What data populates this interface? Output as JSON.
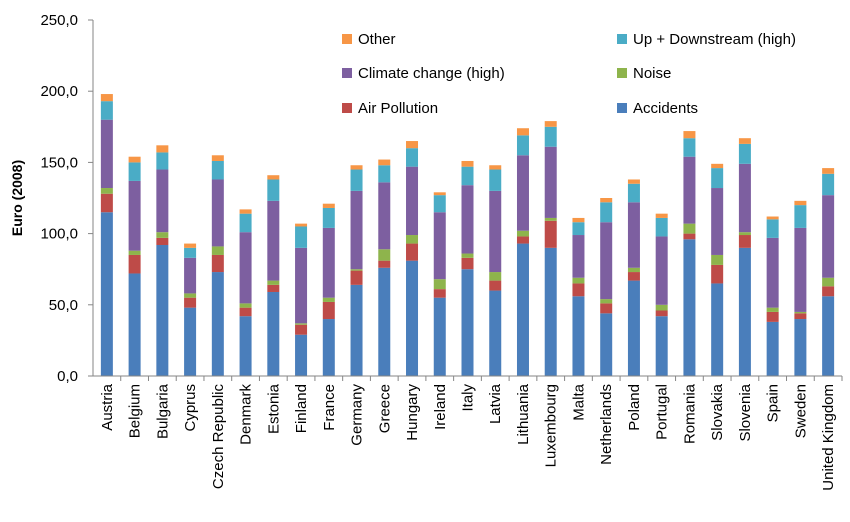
{
  "chart_data": {
    "type": "bar",
    "stacked": true,
    "title": "",
    "xlabel": "",
    "ylabel": "Euro (2008)",
    "ylim": [
      0,
      250
    ],
    "yticks": [
      "0,0",
      "50,0",
      "100,0",
      "150,0",
      "200,0",
      "250,0"
    ],
    "grid": false,
    "legend_position": "top-right",
    "categories": [
      "Austria",
      "Belgium",
      "Bulgaria",
      "Cyprus",
      "Czech Republic",
      "Denmark",
      "Estonia",
      "Finland",
      "France",
      "Germany",
      "Greece",
      "Hungary",
      "Ireland",
      "Italy",
      "Latvia",
      "Lithuania",
      "Luxembourg",
      "Malta",
      "Netherlands",
      "Poland",
      "Portugal",
      "Romania",
      "Slovakia",
      "Slovenia",
      "Spain",
      "Sweden",
      "United Kingdom"
    ],
    "series": [
      {
        "name": "Accidents",
        "color": "#4a7ebb",
        "values": [
          115,
          72,
          92,
          48,
          73,
          42,
          59,
          29,
          40,
          64,
          76,
          81,
          55,
          75,
          60,
          93,
          90,
          56,
          44,
          67,
          42,
          96,
          65,
          90,
          38,
          40,
          56
        ]
      },
      {
        "name": "Air Pollution",
        "color": "#be4b48",
        "values": [
          13,
          13,
          5,
          7,
          12,
          6,
          5,
          7,
          12,
          10,
          5,
          12,
          6,
          8,
          7,
          5,
          19,
          9,
          7,
          6,
          4,
          4,
          13,
          9,
          7,
          4,
          7
        ]
      },
      {
        "name": "Noise",
        "color": "#8eb44c",
        "values": [
          4,
          3,
          4,
          3,
          6,
          3,
          3,
          1,
          3,
          1,
          8,
          6,
          7,
          3,
          6,
          4,
          2,
          4,
          3,
          3,
          4,
          7,
          7,
          2,
          3,
          1,
          6
        ]
      },
      {
        "name": "Climate change (high)",
        "color": "#7d5fa0",
        "values": [
          48,
          49,
          44,
          25,
          47,
          50,
          56,
          53,
          49,
          55,
          47,
          48,
          47,
          48,
          57,
          53,
          50,
          30,
          54,
          46,
          48,
          47,
          47,
          48,
          49,
          59,
          58
        ]
      },
      {
        "name": "Up + Downstream (high)",
        "color": "#4aacc6",
        "values": [
          13,
          13,
          12,
          7,
          13,
          13,
          15,
          15,
          14,
          15,
          12,
          13,
          12,
          13,
          15,
          14,
          14,
          9,
          14,
          13,
          13,
          13,
          14,
          14,
          13,
          16,
          15
        ]
      },
      {
        "name": "Other",
        "color": "#f79646",
        "values": [
          5,
          4,
          5,
          3,
          4,
          3,
          3,
          2,
          3,
          3,
          4,
          5,
          2,
          4,
          3,
          5,
          4,
          3,
          3,
          3,
          3,
          5,
          3,
          4,
          2,
          3,
          4
        ]
      }
    ]
  }
}
